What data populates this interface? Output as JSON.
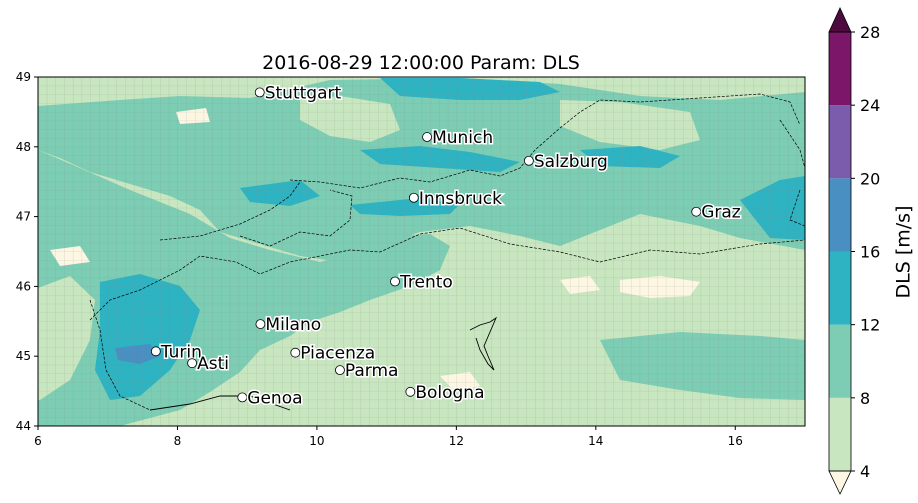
{
  "title": "2016-08-29 12:00:00 Param: DLS",
  "map": {
    "lon_range": [
      6,
      17
    ],
    "lat_range": [
      44,
      49
    ],
    "x_ticks": [
      "6",
      "8",
      "10",
      "12",
      "14",
      "16"
    ],
    "y_ticks": [
      "44",
      "45",
      "46",
      "47",
      "48",
      "49"
    ],
    "grid_resolution_deg": 0.125
  },
  "colorbar": {
    "label": "DLS  [m/s]",
    "levels": [
      "4",
      "8",
      "12",
      "16",
      "20",
      "24",
      "28"
    ],
    "colors": [
      "#c8e6bf",
      "#7ccdb3",
      "#2db3c1",
      "#4a8fc2",
      "#7b5bab",
      "#7b1669"
    ],
    "extend_low_color": "#fdf6e3",
    "extend_high_color": "#4d0a3f"
  },
  "cities": [
    {
      "name": "Stuttgart",
      "lon": 9.18,
      "lat": 48.78
    },
    {
      "name": "Munich",
      "lon": 11.58,
      "lat": 48.14
    },
    {
      "name": "Salzburg",
      "lon": 13.04,
      "lat": 47.8
    },
    {
      "name": "Innsbruck",
      "lon": 11.39,
      "lat": 47.27
    },
    {
      "name": "Graz",
      "lon": 15.44,
      "lat": 47.07
    },
    {
      "name": "Trento",
      "lon": 11.12,
      "lat": 46.07
    },
    {
      "name": "Milano",
      "lon": 9.19,
      "lat": 45.46
    },
    {
      "name": "Turin",
      "lon": 7.69,
      "lat": 45.07
    },
    {
      "name": "Asti",
      "lon": 8.21,
      "lat": 44.9
    },
    {
      "name": "Piacenza",
      "lon": 9.69,
      "lat": 45.05
    },
    {
      "name": "Parma",
      "lon": 10.33,
      "lat": 44.8
    },
    {
      "name": "Bologna",
      "lon": 11.34,
      "lat": 44.49
    },
    {
      "name": "Genoa",
      "lon": 8.93,
      "lat": 44.41
    }
  ]
}
